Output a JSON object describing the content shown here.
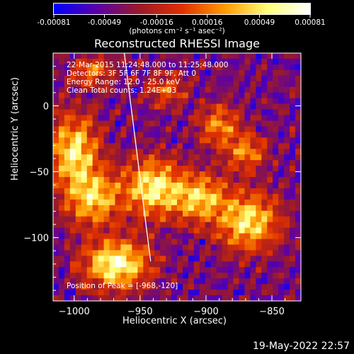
{
  "colorbar": {
    "ticks": [
      "-0.00081",
      "-0.00049",
      "-0.00016",
      "0.00016",
      "0.00049",
      "0.00081"
    ],
    "units": "(photons cm⁻² s⁻¹ asec⁻²)",
    "colors": [
      "#0000ff",
      "#5a00aa",
      "#9a1a2a",
      "#e03000",
      "#ff9a00",
      "#ffff7a",
      "#ffffff"
    ],
    "range": [
      -0.00081,
      0.00081
    ]
  },
  "header": {
    "title": "Reconstructed RHESSI Image",
    "line1": "22-Mar-2015 11:24:48.000 to 11:25:48.000",
    "line2": "Detectors: 3F 5F 6F 7F 8F 9F, Att 0",
    "line3": "Energy Range: 12.0 - 25.0 keV",
    "line4": "Clean     Total counts: 1.24E+03",
    "peak": "Position of Peak = [-968,-120]"
  },
  "footer": {
    "timestamp": "19-May-2022 22:57"
  },
  "chart_data": {
    "type": "heatmap",
    "title": "Reconstructed RHESSI Image",
    "xlabel": "Heliocentric X (arcsec)",
    "ylabel": "Heliocentric Y (arcsec)",
    "xlim": [
      -1016,
      -828
    ],
    "ylim": [
      -148,
      40
    ],
    "xticks": [
      -1000,
      -950,
      -900,
      -850
    ],
    "yticks": [
      0,
      -50,
      -100
    ],
    "xtick_labels": [
      "−1000",
      "−950",
      "−900",
      "−850"
    ],
    "ytick_labels": [
      "0",
      "−50",
      "−100"
    ],
    "peak": [
      -968,
      -120
    ],
    "sources": [
      {
        "x": -1000,
        "y": -35,
        "sx": 12,
        "sy": 18,
        "amp": 0.85
      },
      {
        "x": -985,
        "y": -70,
        "sx": 14,
        "sy": 14,
        "amp": 0.75
      },
      {
        "x": -968,
        "y": -120,
        "sx": 16,
        "sy": 12,
        "amp": 1.0
      },
      {
        "x": -940,
        "y": -62,
        "sx": 14,
        "sy": 14,
        "amp": 0.9
      },
      {
        "x": -905,
        "y": -70,
        "sx": 14,
        "sy": 12,
        "amp": 0.75
      },
      {
        "x": -868,
        "y": -88,
        "sx": 15,
        "sy": 14,
        "amp": 0.85
      },
      {
        "x": -890,
        "y": -15,
        "sx": 10,
        "sy": 10,
        "amp": 0.55
      },
      {
        "x": -870,
        "y": -35,
        "sx": 10,
        "sy": 9,
        "amp": 0.55
      },
      {
        "x": -985,
        "y": 25,
        "sx": 9,
        "sy": 8,
        "amp": 0.45
      },
      {
        "x": -930,
        "y": 12,
        "sx": 10,
        "sy": 8,
        "amp": 0.4
      }
    ]
  }
}
